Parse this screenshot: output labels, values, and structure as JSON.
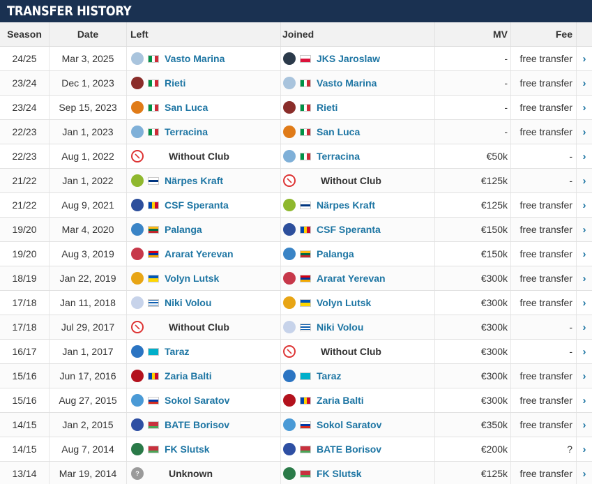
{
  "title": "TRANSFER HISTORY",
  "columns": {
    "season": "Season",
    "date": "Date",
    "left": "Left",
    "joined": "Joined",
    "mv": "MV",
    "fee": "Fee"
  },
  "flags": {
    "it": {
      "dir": "h",
      "colors": [
        "#009246",
        "#ffffff",
        "#ce2b37"
      ]
    },
    "pl": {
      "dir": "v",
      "colors": [
        "#ffffff",
        "#dc143c"
      ]
    },
    "fi": {
      "dir": "v",
      "colors": [
        "#ffffff",
        "#003580",
        "#ffffff"
      ]
    },
    "md": {
      "dir": "h",
      "colors": [
        "#0046ae",
        "#ffd200",
        "#cc092f"
      ]
    },
    "lt": {
      "dir": "v",
      "colors": [
        "#fdb913",
        "#006a44",
        "#c1272d"
      ]
    },
    "am": {
      "dir": "v",
      "colors": [
        "#d90012",
        "#0033a0",
        "#f2a800"
      ]
    },
    "ua": {
      "dir": "v",
      "colors": [
        "#0057b7",
        "#ffd700"
      ]
    },
    "gr": {
      "dir": "v",
      "colors": [
        "#0d5eaf",
        "#ffffff",
        "#0d5eaf",
        "#ffffff",
        "#0d5eaf"
      ]
    },
    "kz": {
      "dir": "v",
      "colors": [
        "#00afca",
        "#00afca"
      ]
    },
    "ru": {
      "dir": "v",
      "colors": [
        "#ffffff",
        "#0039a6",
        "#d52b1e"
      ]
    },
    "by": {
      "dir": "v",
      "colors": [
        "#c8313e",
        "#c8313e",
        "#4aa657"
      ]
    }
  },
  "arrow_glyph": "›",
  "rows": [
    {
      "season": "24/25",
      "date": "Mar 3, 2025",
      "left": {
        "name": "Vasto Marina",
        "crest": "vasto-marina-crest-icon",
        "crest_color": "#a9c4dd",
        "flag": "it"
      },
      "joined": {
        "name": "JKS Jaroslaw",
        "crest": "jks-jaroslaw-crest-icon",
        "crest_color": "#2b3a4a",
        "flag": "pl"
      },
      "mv": "-",
      "fee": "free transfer"
    },
    {
      "season": "23/24",
      "date": "Dec 1, 2023",
      "left": {
        "name": "Rieti",
        "crest": "rieti-crest-icon",
        "crest_color": "#8a2d2a",
        "flag": "it"
      },
      "joined": {
        "name": "Vasto Marina",
        "crest": "vasto-marina-crest-icon",
        "crest_color": "#a9c4dd",
        "flag": "it"
      },
      "mv": "-",
      "fee": "free transfer"
    },
    {
      "season": "23/24",
      "date": "Sep 15, 2023",
      "left": {
        "name": "San Luca",
        "crest": "san-luca-crest-icon",
        "crest_color": "#e07b18",
        "flag": "it"
      },
      "joined": {
        "name": "Rieti",
        "crest": "rieti-crest-icon",
        "crest_color": "#8a2d2a",
        "flag": "it"
      },
      "mv": "-",
      "fee": "free transfer"
    },
    {
      "season": "22/23",
      "date": "Jan 1, 2023",
      "left": {
        "name": "Terracina",
        "crest": "terracina-crest-icon",
        "crest_color": "#7fb0d8",
        "flag": "it"
      },
      "joined": {
        "name": "San Luca",
        "crest": "san-luca-crest-icon",
        "crest_color": "#e07b18",
        "flag": "it"
      },
      "mv": "-",
      "fee": "free transfer"
    },
    {
      "season": "22/23",
      "date": "Aug 1, 2022",
      "left": {
        "name": "Without Club",
        "crest": "without-club-icon",
        "crest_color": "#f3c6c6",
        "flag": ""
      },
      "joined": {
        "name": "Terracina",
        "crest": "terracina-crest-icon",
        "crest_color": "#7fb0d8",
        "flag": "it"
      },
      "mv": "€50k",
      "fee": "-"
    },
    {
      "season": "21/22",
      "date": "Jan 1, 2022",
      "left": {
        "name": "Närpes Kraft",
        "crest": "narpes-kraft-crest-icon",
        "crest_color": "#8fb82e",
        "flag": "fi"
      },
      "joined": {
        "name": "Without Club",
        "crest": "without-club-icon",
        "crest_color": "#f3c6c6",
        "flag": ""
      },
      "mv": "€125k",
      "fee": "-"
    },
    {
      "season": "21/22",
      "date": "Aug 9, 2021",
      "left": {
        "name": "CSF Speranta",
        "crest": "csf-speranta-crest-icon",
        "crest_color": "#2d4f9c",
        "flag": "md"
      },
      "joined": {
        "name": "Närpes Kraft",
        "crest": "narpes-kraft-crest-icon",
        "crest_color": "#8fb82e",
        "flag": "fi"
      },
      "mv": "€125k",
      "fee": "free transfer"
    },
    {
      "season": "19/20",
      "date": "Mar 4, 2020",
      "left": {
        "name": "Palanga",
        "crest": "palanga-crest-icon",
        "crest_color": "#3a84c6",
        "flag": "lt"
      },
      "joined": {
        "name": "CSF Speranta",
        "crest": "csf-speranta-crest-icon",
        "crest_color": "#2d4f9c",
        "flag": "md"
      },
      "mv": "€150k",
      "fee": "free transfer"
    },
    {
      "season": "19/20",
      "date": "Aug 3, 2019",
      "left": {
        "name": "Ararat Yerevan",
        "crest": "ararat-yerevan-crest-icon",
        "crest_color": "#c7384a",
        "flag": "am"
      },
      "joined": {
        "name": "Palanga",
        "crest": "palanga-crest-icon",
        "crest_color": "#3a84c6",
        "flag": "lt"
      },
      "mv": "€150k",
      "fee": "free transfer"
    },
    {
      "season": "18/19",
      "date": "Jan 22, 2019",
      "left": {
        "name": "Volyn Lutsk",
        "crest": "volyn-lutsk-crest-icon",
        "crest_color": "#e8a515",
        "flag": "ua"
      },
      "joined": {
        "name": "Ararat Yerevan",
        "crest": "ararat-yerevan-crest-icon",
        "crest_color": "#c7384a",
        "flag": "am"
      },
      "mv": "€300k",
      "fee": "free transfer"
    },
    {
      "season": "17/18",
      "date": "Jan 11, 2018",
      "left": {
        "name": "Niki Volou",
        "crest": "niki-volou-crest-icon",
        "crest_color": "#c7d3ea",
        "flag": "gr"
      },
      "joined": {
        "name": "Volyn Lutsk",
        "crest": "volyn-lutsk-crest-icon",
        "crest_color": "#e8a515",
        "flag": "ua"
      },
      "mv": "€300k",
      "fee": "free transfer"
    },
    {
      "season": "17/18",
      "date": "Jul 29, 2017",
      "left": {
        "name": "Without Club",
        "crest": "without-club-icon",
        "crest_color": "#f3c6c6",
        "flag": ""
      },
      "joined": {
        "name": "Niki Volou",
        "crest": "niki-volou-crest-icon",
        "crest_color": "#c7d3ea",
        "flag": "gr"
      },
      "mv": "€300k",
      "fee": "-"
    },
    {
      "season": "16/17",
      "date": "Jan 1, 2017",
      "left": {
        "name": "Taraz",
        "crest": "taraz-crest-icon",
        "crest_color": "#2b74c2",
        "flag": "kz"
      },
      "joined": {
        "name": "Without Club",
        "crest": "without-club-icon",
        "crest_color": "#f3c6c6",
        "flag": ""
      },
      "mv": "€300k",
      "fee": "-"
    },
    {
      "season": "15/16",
      "date": "Jun 17, 2016",
      "left": {
        "name": "Zaria Balti",
        "crest": "zaria-balti-crest-icon",
        "crest_color": "#b3121d",
        "flag": "md"
      },
      "joined": {
        "name": "Taraz",
        "crest": "taraz-crest-icon",
        "crest_color": "#2b74c2",
        "flag": "kz"
      },
      "mv": "€300k",
      "fee": "free transfer"
    },
    {
      "season": "15/16",
      "date": "Aug 27, 2015",
      "left": {
        "name": "Sokol Saratov",
        "crest": "sokol-saratov-crest-icon",
        "crest_color": "#4a9ad6",
        "flag": "ru"
      },
      "joined": {
        "name": "Zaria Balti",
        "crest": "zaria-balti-crest-icon",
        "crest_color": "#b3121d",
        "flag": "md"
      },
      "mv": "€300k",
      "fee": "free transfer"
    },
    {
      "season": "14/15",
      "date": "Jan 2, 2015",
      "left": {
        "name": "BATE Borisov",
        "crest": "bate-borisov-crest-icon",
        "crest_color": "#2e4fa3",
        "flag": "by"
      },
      "joined": {
        "name": "Sokol Saratov",
        "crest": "sokol-saratov-crest-icon",
        "crest_color": "#4a9ad6",
        "flag": "ru"
      },
      "mv": "€350k",
      "fee": "free transfer"
    },
    {
      "season": "14/15",
      "date": "Aug 7, 2014",
      "left": {
        "name": "FK Slutsk",
        "crest": "fk-slutsk-crest-icon",
        "crest_color": "#2a7a48",
        "flag": "by"
      },
      "joined": {
        "name": "BATE Borisov",
        "crest": "bate-borisov-crest-icon",
        "crest_color": "#2e4fa3",
        "flag": "by"
      },
      "mv": "€200k",
      "fee": "?"
    },
    {
      "season": "13/14",
      "date": "Mar 19, 2014",
      "left": {
        "name": "Unknown",
        "crest": "unknown-club-icon",
        "crest_color": "#9a9a9a",
        "flag": ""
      },
      "joined": {
        "name": "FK Slutsk",
        "crest": "fk-slutsk-crest-icon",
        "crest_color": "#2a7a48",
        "flag": "by"
      },
      "mv": "€125k",
      "fee": "free transfer"
    }
  ]
}
